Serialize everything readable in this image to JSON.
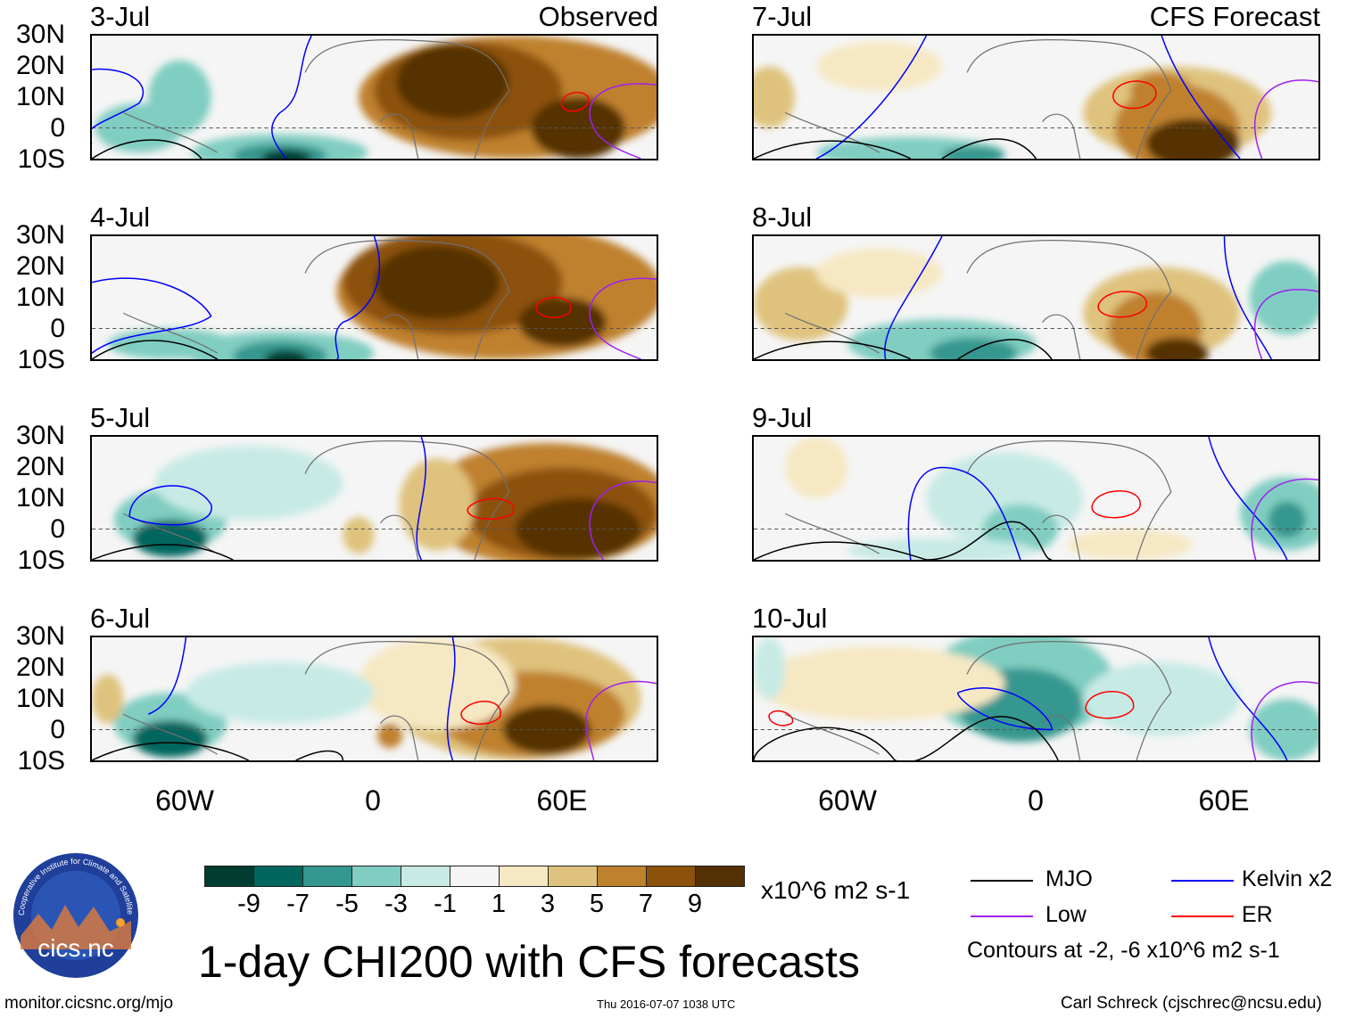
{
  "header": {
    "left_label": "Observed",
    "right_label": "CFS Forecast"
  },
  "panels": {
    "left": [
      {
        "date": "3-Jul"
      },
      {
        "date": "4-Jul"
      },
      {
        "date": "5-Jul"
      },
      {
        "date": "6-Jul"
      }
    ],
    "right": [
      {
        "date": "7-Jul"
      },
      {
        "date": "8-Jul"
      },
      {
        "date": "9-Jul"
      },
      {
        "date": "10-Jul"
      }
    ]
  },
  "lat_labels": [
    "30N",
    "20N",
    "10N",
    "0",
    "10S"
  ],
  "lon_labels": [
    "60W",
    "0",
    "60E"
  ],
  "colorbar": {
    "colors": [
      "#003c30",
      "#01665e",
      "#35978f",
      "#80cdc1",
      "#c7eae5",
      "#f5f5f5",
      "#f6e8c3",
      "#dfc27d",
      "#bf812d",
      "#8c510a",
      "#543005"
    ],
    "labels": [
      "-9",
      "-7",
      "-5",
      "-3",
      "-1",
      "1",
      "3",
      "5",
      "7",
      "9"
    ],
    "units": "x10^6 m2 s-1"
  },
  "title": "1-day CHI200 with CFS forecasts",
  "legend": {
    "items": [
      {
        "label": "MJO",
        "color": "#000000"
      },
      {
        "label": "Kelvin x2",
        "color": "#0000ff"
      },
      {
        "label": "Low",
        "color": "#a020f0"
      },
      {
        "label": "ER",
        "color": "#ff0000"
      }
    ],
    "note": "Contours at -2, -6 x10^6 m2 s-1"
  },
  "logo": {
    "text": "cics.nc",
    "ring": "Cooperative Institute for Climate and Satellites"
  },
  "footer": {
    "url": "monitor.cicsnc.org/mjo",
    "timestamp": "Thu 2016-07-07 1038 UTC",
    "author": "Carl Schreck (cjschrec@ncsu.edu)"
  }
}
